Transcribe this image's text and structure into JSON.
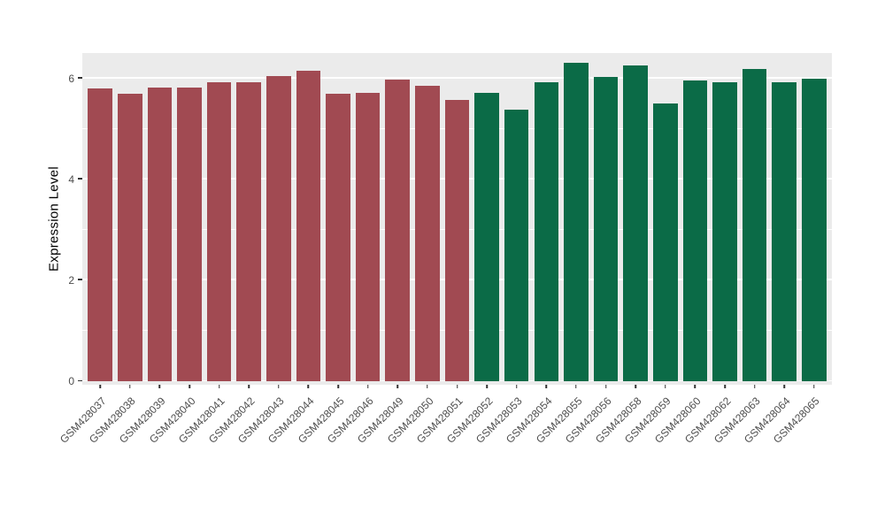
{
  "figure": {
    "background": "#FFFFFF"
  },
  "chart_data": {
    "type": "bar",
    "title": "",
    "xlabel": "",
    "ylabel": "Expression Level",
    "ylim": [
      0,
      6.5
    ],
    "yticks_major": [
      0,
      2,
      4,
      6
    ],
    "yticks_minor": [
      1,
      3,
      5
    ],
    "grid": "on",
    "legend_position": "none",
    "panel_background": "#EBEBEB",
    "gridline_color": "#FFFFFF",
    "tick_color": "#333333",
    "axis_text_color": "#4D4D4D",
    "categories": [
      "GSM428037",
      "GSM428038",
      "GSM428039",
      "GSM428040",
      "GSM428041",
      "GSM428042",
      "GSM428043",
      "GSM428044",
      "GSM428045",
      "GSM428046",
      "GSM428049",
      "GSM428050",
      "GSM428051",
      "GSM428052",
      "GSM428053",
      "GSM428054",
      "GSM428055",
      "GSM428056",
      "GSM428058",
      "GSM428059",
      "GSM428060",
      "GSM428062",
      "GSM428063",
      "GSM428064",
      "GSM428065"
    ],
    "values": [
      5.8,
      5.7,
      5.82,
      5.82,
      5.92,
      5.92,
      6.05,
      6.15,
      5.7,
      5.72,
      5.98,
      5.85,
      5.58,
      5.72,
      5.38,
      5.92,
      6.3,
      6.02,
      6.25,
      5.5,
      5.95,
      5.93,
      6.18,
      5.93,
      6.0
    ],
    "groups": [
      0,
      0,
      0,
      0,
      0,
      0,
      0,
      0,
      0,
      0,
      0,
      0,
      0,
      1,
      1,
      1,
      1,
      1,
      1,
      1,
      1,
      1,
      1,
      1,
      1
    ],
    "group_colors": [
      "#A14A52",
      "#0B6B47"
    ]
  }
}
